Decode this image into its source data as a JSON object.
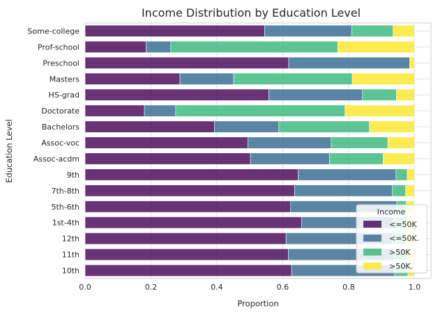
{
  "chart_data": {
    "type": "bar",
    "orientation": "horizontal",
    "stacked": true,
    "title": "Income Distribution by Education Level",
    "xlabel": "Proportion",
    "ylabel": "Education Level",
    "xlim": [
      0,
      1.05
    ],
    "xticks": [
      "0.0",
      "0.2",
      "0.4",
      "0.6",
      "0.8",
      "1.0"
    ],
    "grid": true,
    "legend": {
      "title": "Income",
      "placement": "bottom-right"
    },
    "categories": [
      "Some-college",
      "Prof-school",
      "Preschool",
      "Masters",
      "HS-grad",
      "Doctorate",
      "Bachelors",
      "Assoc-voc",
      "Assoc-acdm",
      "9th",
      "7th-8th",
      "5th-6th",
      "1st-4th",
      "12th",
      "11th",
      "10th"
    ],
    "series": [
      {
        "name": "<=50K",
        "color": "#440154",
        "values": [
          0.545,
          0.185,
          0.618,
          0.288,
          0.558,
          0.18,
          0.393,
          0.494,
          0.502,
          0.647,
          0.636,
          0.624,
          0.657,
          0.61,
          0.617,
          0.627
        ]
      },
      {
        "name": "<=50K.",
        "color": "#31688e",
        "values": [
          0.265,
          0.075,
          0.367,
          0.163,
          0.284,
          0.095,
          0.195,
          0.253,
          0.24,
          0.297,
          0.296,
          0.322,
          0.28,
          0.323,
          0.32,
          0.313
        ]
      },
      {
        "name": ">50K",
        "color": "#35b779",
        "values": [
          0.125,
          0.507,
          0.0,
          0.36,
          0.103,
          0.514,
          0.275,
          0.172,
          0.163,
          0.034,
          0.041,
          0.029,
          0.04,
          0.04,
          0.041,
          0.04
        ]
      },
      {
        "name": ">50K.",
        "color": "#fde725",
        "values": [
          0.065,
          0.233,
          0.015,
          0.189,
          0.055,
          0.211,
          0.137,
          0.081,
          0.095,
          0.022,
          0.027,
          0.025,
          0.023,
          0.027,
          0.022,
          0.02
        ]
      }
    ]
  }
}
